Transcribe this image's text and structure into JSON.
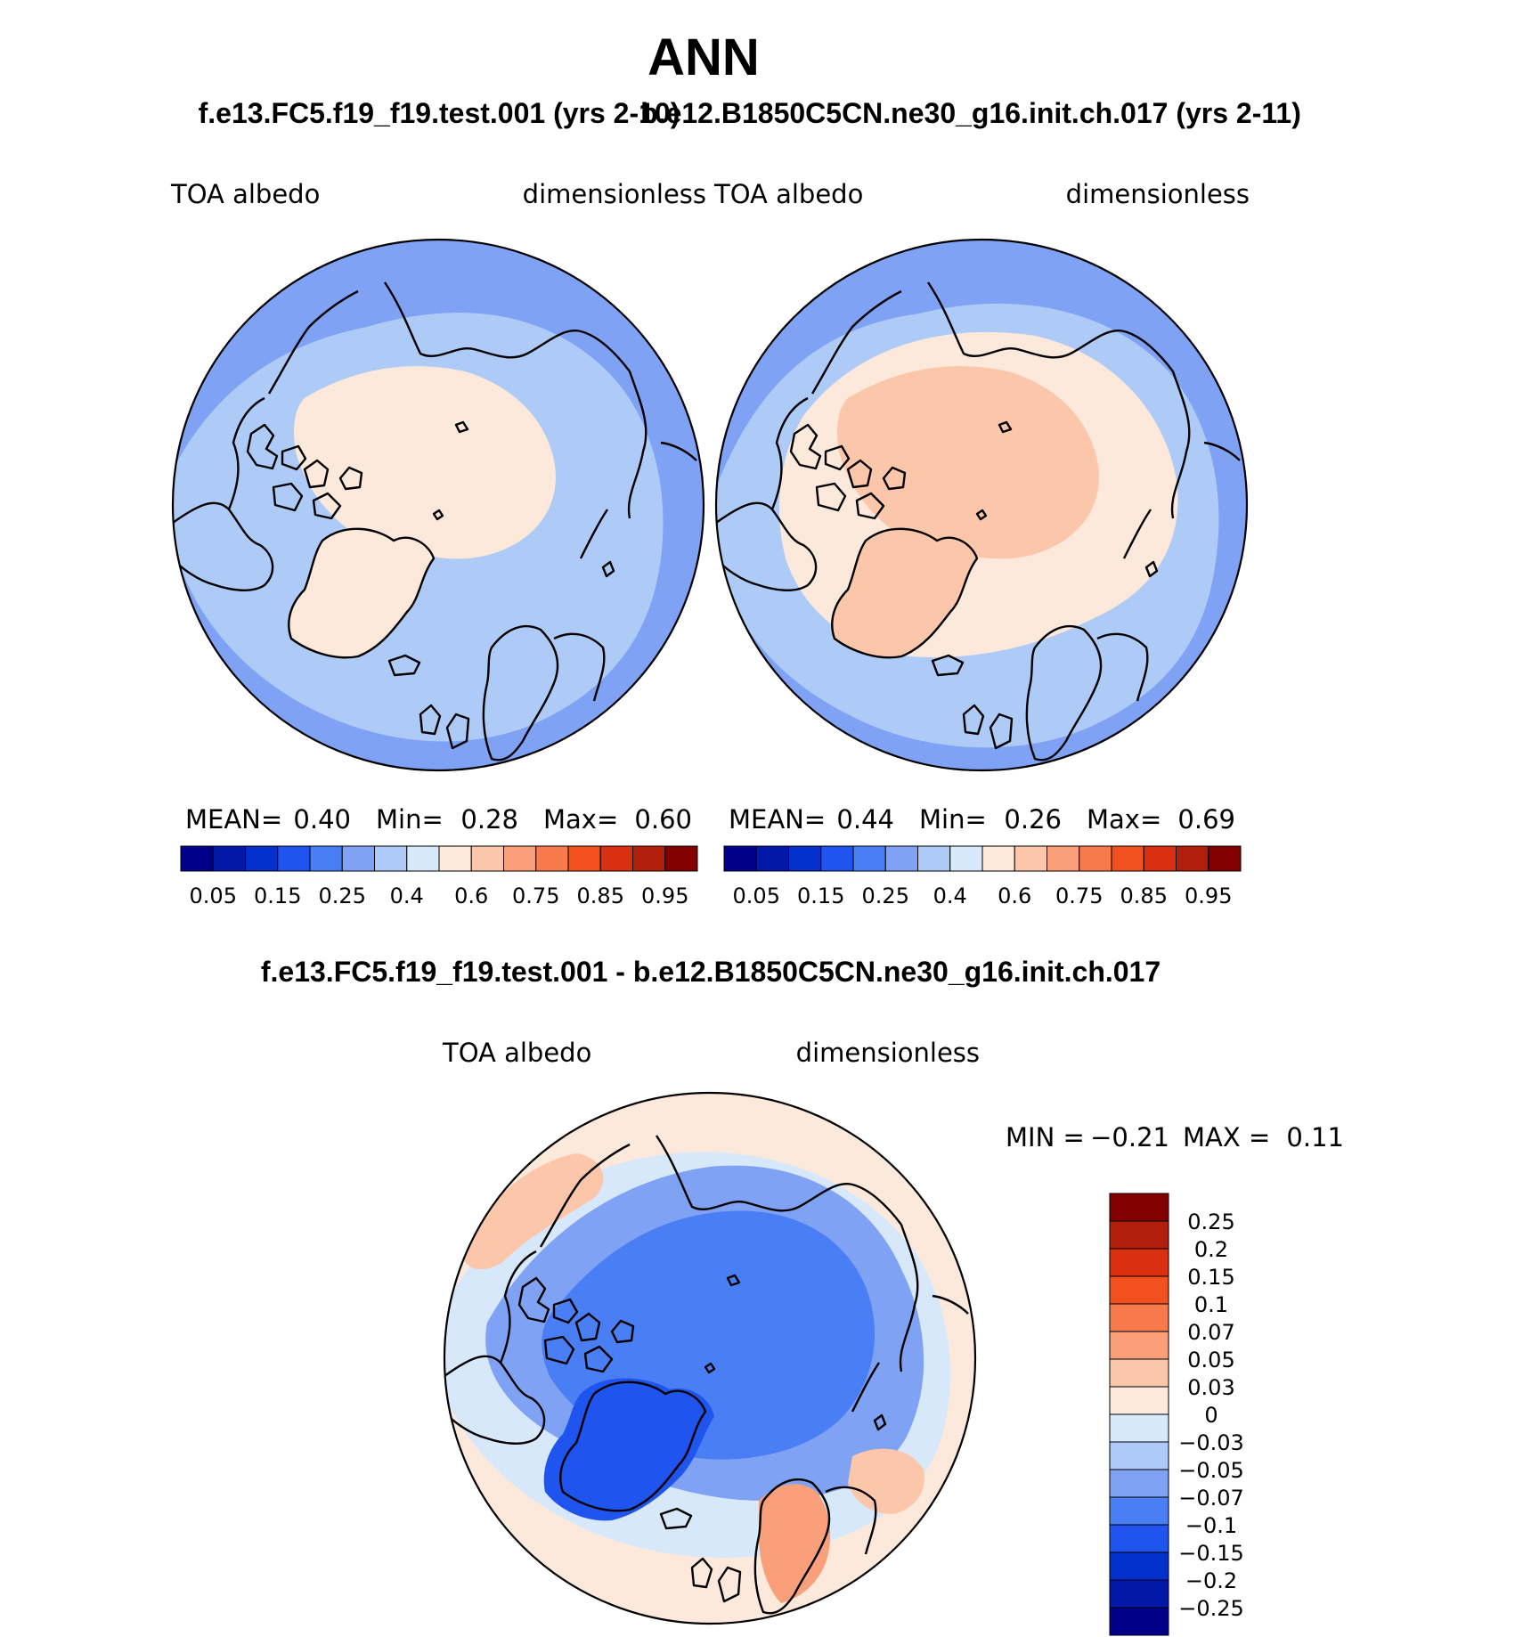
{
  "figure": {
    "title": "ANN",
    "case_a_label": "f.e13.FC5.f19_f19.test.001 (yrs 2-10)",
    "case_b_label": "b.e12.B1850C5CN.ne30_g16.init.ch.017 (yrs 2-11)",
    "diff_label": "f.e13.FC5.f19_f19.test.001 - b.e12.B1850C5CN.ne30_g16.init.ch.017"
  },
  "colors": {
    "abs_scale": [
      "#00008b",
      "#0219a8",
      "#0430cc",
      "#1f54ee",
      "#4a7ef4",
      "#7fa2f4",
      "#aecbf7",
      "#d8e8fb",
      "#fde9db",
      "#fbc6a9",
      "#f9a07a",
      "#f67a4b",
      "#f2511f",
      "#d83010",
      "#b11e0c",
      "#830000"
    ],
    "diff_scale": [
      "#00008b",
      "#0219a8",
      "#0430cc",
      "#1f54ee",
      "#4a7ef4",
      "#7fa2f4",
      "#aecbf7",
      "#d8e8fb",
      "#fde9db",
      "#fbc6a9",
      "#f9a07a",
      "#f67a4b",
      "#f2511f",
      "#d83010",
      "#b11e0c",
      "#830000"
    ]
  },
  "chart_data": [
    {
      "type": "polar-contour-map",
      "panel": "case_a",
      "left_label": "TOA  albedo",
      "right_label": "dimensionless",
      "stats": {
        "mean_label": "MEAN=",
        "mean": "0.40",
        "min_label": "Min=",
        "min": "0.28",
        "max_label": "Max=",
        "max": "0.60"
      },
      "colorbar_ticks": [
        "0.05",
        "0.15",
        "0.25",
        "0.4",
        "0.6",
        "0.75",
        "0.85",
        "0.95"
      ],
      "levels": [
        0.05,
        0.1,
        0.15,
        0.2,
        0.25,
        0.3,
        0.4,
        0.5,
        0.6,
        0.7,
        0.75,
        0.8,
        0.85,
        0.9,
        0.95
      ],
      "dominant_levels": {
        "ocean": 0.35,
        "arctic": 0.55,
        "greenland": 0.55
      }
    },
    {
      "type": "polar-contour-map",
      "panel": "case_b",
      "left_label": "TOA  albedo",
      "right_label": "dimensionless",
      "stats": {
        "mean_label": "MEAN=",
        "mean": "0.44",
        "min_label": "Min=",
        "min": "0.26",
        "max_label": "Max=",
        "max": "0.69"
      },
      "colorbar_ticks": [
        "0.05",
        "0.15",
        "0.25",
        "0.4",
        "0.6",
        "0.75",
        "0.85",
        "0.95"
      ],
      "levels": [
        0.05,
        0.1,
        0.15,
        0.2,
        0.25,
        0.3,
        0.4,
        0.5,
        0.6,
        0.7,
        0.75,
        0.8,
        0.85,
        0.9,
        0.95
      ],
      "dominant_levels": {
        "ocean": 0.35,
        "arctic": 0.62,
        "greenland": 0.65
      }
    },
    {
      "type": "polar-contour-map",
      "panel": "difference",
      "left_label": "TOA  albedo",
      "right_label": "dimensionless",
      "stats": {
        "min_label": "MIN =",
        "min": "−0.21",
        "max_label": "MAX =",
        "max": "0.11"
      },
      "colorbar_ticks": [
        "0.25",
        "0.2",
        "0.15",
        "0.1",
        "0.07",
        "0.05",
        "0.03",
        "0",
        "−0.03",
        "−0.05",
        "−0.07",
        "−0.1",
        "−0.15",
        "−0.2",
        "−0.25"
      ],
      "levels": [
        -0.25,
        -0.2,
        -0.15,
        -0.1,
        -0.07,
        -0.05,
        -0.03,
        0,
        0.03,
        0.05,
        0.07,
        0.1,
        0.15,
        0.2,
        0.25
      ],
      "dominant_levels": {
        "arctic": -0.08,
        "greenland": -0.12,
        "midlat": 0.02
      }
    }
  ]
}
